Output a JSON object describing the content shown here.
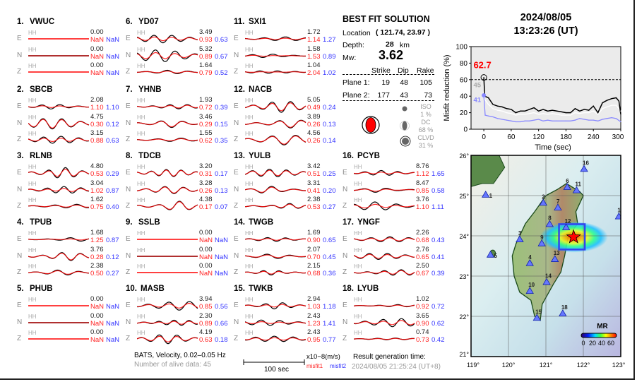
{
  "stations": [
    {
      "num": "1.",
      "name": "VWUC",
      "comps": [
        {
          "c": "E",
          "amp": "0.00",
          "m1": "NaN",
          "m2": "NaN"
        },
        {
          "c": "N",
          "amp": "0.00",
          "m1": "NaN",
          "m2": "NaN"
        },
        {
          "c": "Z",
          "amp": "0.00",
          "m1": "NaN",
          "m2": "NaN"
        }
      ]
    },
    {
      "num": "2.",
      "name": "SBCB",
      "comps": [
        {
          "c": "E",
          "amp": "2.08",
          "m1": "1.10",
          "m2": "1.10"
        },
        {
          "c": "N",
          "amp": "4.75",
          "m1": "0.30",
          "m2": "0.12"
        },
        {
          "c": "Z",
          "amp": "3.15",
          "m1": "0.88",
          "m2": "0.63"
        }
      ]
    },
    {
      "num": "3.",
      "name": "RLNB",
      "comps": [
        {
          "c": "E",
          "amp": "4.80",
          "m1": "0.53",
          "m2": "0.29"
        },
        {
          "c": "N",
          "amp": "3.04",
          "m1": "1.02",
          "m2": "0.87"
        },
        {
          "c": "Z",
          "amp": "1.62",
          "m1": "0.75",
          "m2": "0.40"
        }
      ]
    },
    {
      "num": "4.",
      "name": "TPUB",
      "comps": [
        {
          "c": "E",
          "amp": "1.68",
          "m1": "1.25",
          "m2": "0.87"
        },
        {
          "c": "N",
          "amp": "3.76",
          "m1": "0.28",
          "m2": "0.12"
        },
        {
          "c": "Z",
          "amp": "2.38",
          "m1": "0.50",
          "m2": "0.27"
        }
      ]
    },
    {
      "num": "5.",
      "name": "PHUB",
      "comps": [
        {
          "c": "E",
          "amp": "0.00",
          "m1": "NaN",
          "m2": "NaN"
        },
        {
          "c": "N",
          "amp": "0.00",
          "m1": "NaN",
          "m2": "NaN"
        },
        {
          "c": "Z",
          "amp": "0.00",
          "m1": "NaN",
          "m2": "NaN"
        }
      ]
    },
    {
      "num": "6.",
      "name": "YD07",
      "comps": [
        {
          "c": "E",
          "amp": "3.49",
          "m1": "0.93",
          "m2": "0.63"
        },
        {
          "c": "N",
          "amp": "5.32",
          "m1": "0.89",
          "m2": "0.67"
        },
        {
          "c": "Z",
          "amp": "1.64",
          "m1": "0.79",
          "m2": "0.52"
        }
      ]
    },
    {
      "num": "7.",
      "name": "YHNB",
      "comps": [
        {
          "c": "E",
          "amp": "1.93",
          "m1": "0.72",
          "m2": "0.39"
        },
        {
          "c": "N",
          "amp": "3.46",
          "m1": "0.29",
          "m2": "0.15"
        },
        {
          "c": "Z",
          "amp": "1.55",
          "m1": "0.62",
          "m2": "0.35"
        }
      ]
    },
    {
      "num": "8.",
      "name": "TDCB",
      "comps": [
        {
          "c": "E",
          "amp": "3.20",
          "m1": "0.31",
          "m2": "0.17"
        },
        {
          "c": "N",
          "amp": "3.28",
          "m1": "0.26",
          "m2": "0.13"
        },
        {
          "c": "Z",
          "amp": "4.38",
          "m1": "0.17",
          "m2": "0.07"
        }
      ]
    },
    {
      "num": "9.",
      "name": "SSLB",
      "comps": [
        {
          "c": "E",
          "amp": "0.00",
          "m1": "NaN",
          "m2": "NaN"
        },
        {
          "c": "N",
          "amp": "0.00",
          "m1": "NaN",
          "m2": "NaN"
        },
        {
          "c": "Z",
          "amp": "0.00",
          "m1": "NaN",
          "m2": "NaN"
        }
      ]
    },
    {
      "num": "10.",
      "name": "MASB",
      "comps": [
        {
          "c": "E",
          "amp": "3.94",
          "m1": "0.85",
          "m2": "0.56"
        },
        {
          "c": "N",
          "amp": "2.30",
          "m1": "0.89",
          "m2": "0.66"
        },
        {
          "c": "Z",
          "amp": "4.19",
          "m1": "0.63",
          "m2": "0.18"
        }
      ]
    },
    {
      "num": "11.",
      "name": "SXI1",
      "comps": [
        {
          "c": "E",
          "amp": "1.72",
          "m1": "1.14",
          "m2": "1.27"
        },
        {
          "c": "N",
          "amp": "1.58",
          "m1": "1.53",
          "m2": "0.89"
        },
        {
          "c": "Z",
          "amp": "1.04",
          "m1": "2.04",
          "m2": "1.02"
        }
      ]
    },
    {
      "num": "12.",
      "name": "NACB",
      "comps": [
        {
          "c": "E",
          "amp": "5.05",
          "m1": "0.49",
          "m2": "0.24"
        },
        {
          "c": "N",
          "amp": "3.89",
          "m1": "0.26",
          "m2": "0.13"
        },
        {
          "c": "Z",
          "amp": "4.56",
          "m1": "0.26",
          "m2": "0.14"
        }
      ]
    },
    {
      "num": "13.",
      "name": "YULB",
      "comps": [
        {
          "c": "E",
          "amp": "3.42",
          "m1": "0.51",
          "m2": "0.25"
        },
        {
          "c": "N",
          "amp": "3.31",
          "m1": "0.41",
          "m2": "0.20"
        },
        {
          "c": "Z",
          "amp": "2.38",
          "m1": "0.53",
          "m2": "0.27"
        }
      ]
    },
    {
      "num": "14.",
      "name": "TWGB",
      "comps": [
        {
          "c": "E",
          "amp": "1.69",
          "m1": "0.90",
          "m2": "0.65"
        },
        {
          "c": "N",
          "amp": "2.07",
          "m1": "0.70",
          "m2": "0.45"
        },
        {
          "c": "Z",
          "amp": "2.15",
          "m1": "0.68",
          "m2": "0.36"
        }
      ]
    },
    {
      "num": "15.",
      "name": "TWKB",
      "comps": [
        {
          "c": "E",
          "amp": "2.94",
          "m1": "1.03",
          "m2": "1.18"
        },
        {
          "c": "N",
          "amp": "2.43",
          "m1": "1.23",
          "m2": "1.41"
        },
        {
          "c": "Z",
          "amp": "2.43",
          "m1": "0.95",
          "m2": "0.77"
        }
      ]
    },
    {
      "num": "16.",
      "name": "PCYB",
      "comps": [
        {
          "c": "E",
          "amp": "8.76",
          "m1": "1.12",
          "m2": "1.65"
        },
        {
          "c": "N",
          "amp": "8.47",
          "m1": "0.85",
          "m2": "0.58"
        },
        {
          "c": "Z",
          "amp": "3.76",
          "m1": "1.10",
          "m2": "1.11"
        }
      ]
    },
    {
      "num": "17.",
      "name": "YNGF",
      "comps": [
        {
          "c": "E",
          "amp": "2.26",
          "m1": "0.68",
          "m2": "0.43"
        },
        {
          "c": "N",
          "amp": "2.76",
          "m1": "0.65",
          "m2": "0.41"
        },
        {
          "c": "Z",
          "amp": "2.50",
          "m1": "0.67",
          "m2": "0.39"
        }
      ]
    },
    {
      "num": "18.",
      "name": "LYUB",
      "comps": [
        {
          "c": "E",
          "amp": "1.02",
          "m1": "0.92",
          "m2": "0.72"
        },
        {
          "c": "N",
          "amp": "3.65",
          "m1": "0.90",
          "m2": "0.62"
        },
        {
          "c": "Z",
          "amp": "0.74",
          "m1": "0.73",
          "m2": "0.42"
        }
      ]
    }
  ],
  "channel_label": "HH",
  "best_fit": {
    "title": "BEST FIT SOLUTION",
    "location_label": "Location",
    "location_value": "( 121.74,  23.97 )",
    "depth_label": "Depth:",
    "depth_value": "28",
    "depth_unit": "km",
    "mw_label": "Mw:",
    "mw_value": "3.62",
    "headers": [
      "Strike",
      "Dip",
      "Rake"
    ],
    "planes": [
      {
        "label": "Plane 1:",
        "strike": "19",
        "dip": "48",
        "rake": "105"
      },
      {
        "label": "Plane 2:",
        "strike": "177",
        "dip": "43",
        "rake": "73"
      }
    ],
    "components": [
      {
        "label": "ISO",
        "pct": "1  %"
      },
      {
        "label": "DC",
        "pct": "68 %"
      },
      {
        "label": "CLVD",
        "pct": "31 %"
      }
    ],
    "beachball_color": "#ff0000"
  },
  "event_time": {
    "date": "2024/08/05",
    "time": "13:23:26  (UT)"
  },
  "chart_data": {
    "type": "line",
    "title": "",
    "xlabel": "Time (sec)",
    "ylabel": "Misfit reduction (%)",
    "xlim": [
      -28,
      300
    ],
    "ylim": [
      0,
      100
    ],
    "xticks": [
      0,
      60,
      120,
      180,
      240,
      300
    ],
    "yticks": [
      0,
      20,
      40,
      60,
      80,
      100
    ],
    "threshold": 60,
    "annotations": {
      "peak": "62.7",
      "gray_start": "45",
      "blue_start": "41"
    },
    "series": [
      {
        "name": "misfit reduction",
        "color": "#000000",
        "x": [
          0,
          2,
          10,
          20,
          30,
          40,
          50,
          60,
          70,
          80,
          90,
          100,
          110,
          120,
          130,
          140,
          150,
          160,
          170,
          180,
          190,
          200,
          210,
          220,
          230,
          240,
          250,
          260,
          270,
          280,
          290,
          296,
          300
        ],
        "values": [
          62.7,
          40,
          38,
          30,
          28,
          27,
          25,
          24,
          20,
          22,
          22,
          24,
          26,
          22,
          24,
          22,
          23,
          22,
          21,
          20,
          20,
          25,
          22,
          24,
          23,
          28,
          20,
          32,
          35,
          37,
          38,
          34,
          18
        ]
      },
      {
        "name": "misfit reduction (secondary)",
        "color": "#ffffff",
        "x": [
          0,
          2,
          10,
          20,
          30,
          40,
          50,
          60,
          70,
          80,
          90,
          100,
          110,
          120,
          130,
          140,
          150,
          160,
          170,
          180,
          190,
          200,
          210,
          220,
          230,
          240,
          250,
          260,
          270,
          280,
          290,
          300
        ],
        "values": [
          45,
          36,
          30,
          25,
          23,
          22,
          20,
          19,
          17,
          18,
          18,
          19,
          20,
          18,
          19,
          18,
          19,
          18,
          17,
          17,
          17,
          20,
          19,
          20,
          20,
          22,
          18,
          25,
          27,
          29,
          29,
          22
        ]
      },
      {
        "name": "misfit reduction (alternate)",
        "color": "#8888ff",
        "x": [
          0,
          3,
          10,
          20,
          30,
          40,
          50,
          60,
          70,
          80,
          90,
          100,
          110,
          120,
          130,
          140,
          150,
          160,
          170,
          180,
          190,
          200,
          210,
          220,
          230,
          240,
          250,
          260,
          270,
          280,
          290,
          300
        ],
        "values": [
          41,
          17,
          16,
          15,
          13,
          12,
          11,
          10,
          9,
          9,
          10,
          10,
          11,
          12,
          10,
          11,
          10,
          10,
          10,
          10,
          10,
          11,
          13,
          12,
          11,
          11,
          10,
          12,
          13,
          14,
          13,
          9
        ]
      }
    ]
  },
  "map": {
    "lon_ticks": [
      "119°",
      "120°",
      "121°",
      "122°",
      "123°"
    ],
    "lat_ticks": [
      "21°",
      "22°",
      "23°",
      "24°",
      "25°",
      "26°"
    ],
    "lon_range": [
      119,
      123
    ],
    "lat_range": [
      21,
      26
    ],
    "epicenter": {
      "lon": 121.74,
      "lat": 23.97
    },
    "search_box": {
      "lon": [
        121.35,
        122.04
      ],
      "lat": [
        23.66,
        24.29
      ]
    },
    "stations": [
      {
        "id": "1",
        "lon": 119.39,
        "lat": 25.02
      },
      {
        "id": "2",
        "lon": 120.93,
        "lat": 24.82
      },
      {
        "id": "3",
        "lon": 120.3,
        "lat": 23.91
      },
      {
        "id": "4",
        "lon": 120.57,
        "lat": 23.32
      },
      {
        "id": "5",
        "lon": 119.52,
        "lat": 23.53
      },
      {
        "id": "6",
        "lon": 121.57,
        "lat": 25.21
      },
      {
        "id": "7",
        "lon": 121.32,
        "lat": 24.7
      },
      {
        "id": "8",
        "lon": 121.1,
        "lat": 24.29
      },
      {
        "id": "9",
        "lon": 120.89,
        "lat": 23.81
      },
      {
        "id": "10",
        "lon": 120.57,
        "lat": 22.63
      },
      {
        "id": "11",
        "lon": 121.82,
        "lat": 25.13
      },
      {
        "id": "12",
        "lon": 121.54,
        "lat": 24.21
      },
      {
        "id": "13",
        "lon": 121.24,
        "lat": 23.42
      },
      {
        "id": "14",
        "lon": 121.02,
        "lat": 22.85
      },
      {
        "id": "15",
        "lon": 120.76,
        "lat": 21.96
      },
      {
        "id": "16",
        "lon": 122.02,
        "lat": 25.66
      },
      {
        "id": "17",
        "lon": 122.95,
        "lat": 24.48
      },
      {
        "id": "18",
        "lon": 121.45,
        "lat": 22.07
      }
    ],
    "colorbar": {
      "title": "MR",
      "labels": [
        "0",
        "20",
        "40",
        "60"
      ]
    }
  },
  "footer": {
    "network_info": "BATS, Velocity, 0.02–0.05 Hz",
    "alive_data": "Number of alive data: 45",
    "scale_label": "100 sec",
    "unit_label": "x10−8(m/s)",
    "misfit1_label": "misfit1",
    "misfit2_label": "misfit2",
    "result_time_label": "Result generation time:",
    "result_time_value": "2024/08/05 21:25:24 (UT+8)"
  }
}
